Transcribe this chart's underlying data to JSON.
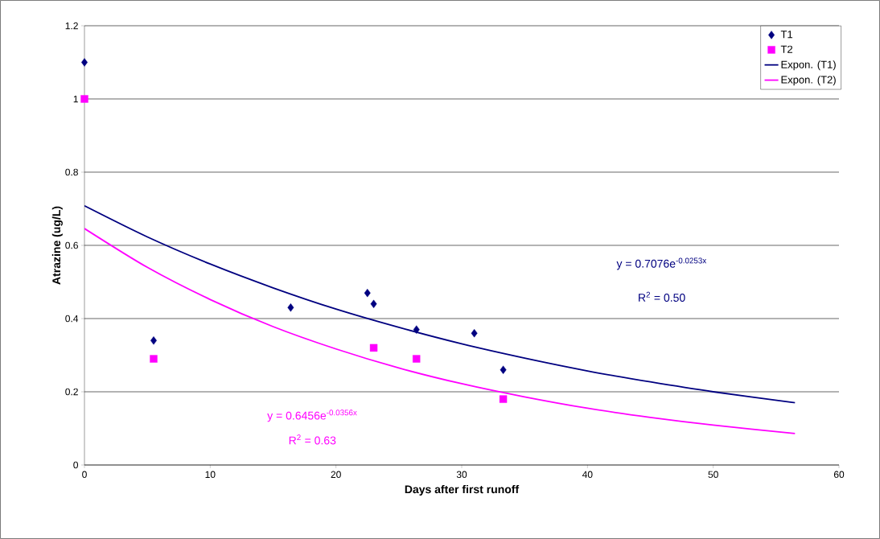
{
  "chart_data": {
    "type": "scatter",
    "xlabel": "Days after first runoff",
    "ylabel": "Atrazine (ug/L)",
    "xlim": [
      0,
      60
    ],
    "xticks": [
      0,
      10,
      20,
      30,
      40,
      50,
      60
    ],
    "ylim": [
      0,
      1.2
    ],
    "yticks": [
      0,
      0.2,
      0.4,
      0.6,
      0.8,
      1,
      1.2
    ],
    "grid": "y",
    "legend": "top right",
    "series": [
      {
        "name": "T1",
        "marker": "diamond",
        "color": "#000080",
        "x": [
          0,
          5.5,
          16.4,
          22.5,
          23,
          26.4,
          31,
          33.3
        ],
        "values": [
          1.1,
          0.34,
          0.43,
          0.47,
          0.44,
          0.37,
          0.36,
          0.26
        ]
      },
      {
        "name": "T2",
        "marker": "square",
        "color": "#ff00ff",
        "x": [
          0,
          5.5,
          23,
          26.4,
          33.3
        ],
        "values": [
          1.0,
          0.29,
          0.32,
          0.29,
          0.18
        ]
      },
      {
        "name": "Expon. (T1)",
        "type": "line",
        "marker": "none",
        "line_style": "solid",
        "color": "#000080",
        "x": [
          0,
          5,
          10,
          15,
          20,
          25,
          30,
          35,
          40,
          45,
          50,
          56.5
        ],
        "values": [
          0.708,
          0.623,
          0.549,
          0.484,
          0.426,
          0.376,
          0.331,
          0.292,
          0.257,
          0.227,
          0.2,
          0.17
        ]
      },
      {
        "name": "Expon. (T2)",
        "type": "line",
        "marker": "none",
        "line_style": "solid",
        "color": "#ff00ff",
        "x": [
          0,
          5,
          10,
          15,
          20,
          25,
          30,
          35,
          40,
          45,
          50,
          56.5
        ],
        "values": [
          0.646,
          0.54,
          0.452,
          0.378,
          0.317,
          0.265,
          0.222,
          0.186,
          0.155,
          0.13,
          0.109,
          0.086
        ]
      }
    ],
    "annotations": [
      "y = 0.7076e$^{-0.0253x}$",
      "R$^{2}$ = 0.50",
      "y = 0.6456e$^{-0.0356x}$",
      "R$^{2}$ = 0.63"
    ]
  }
}
